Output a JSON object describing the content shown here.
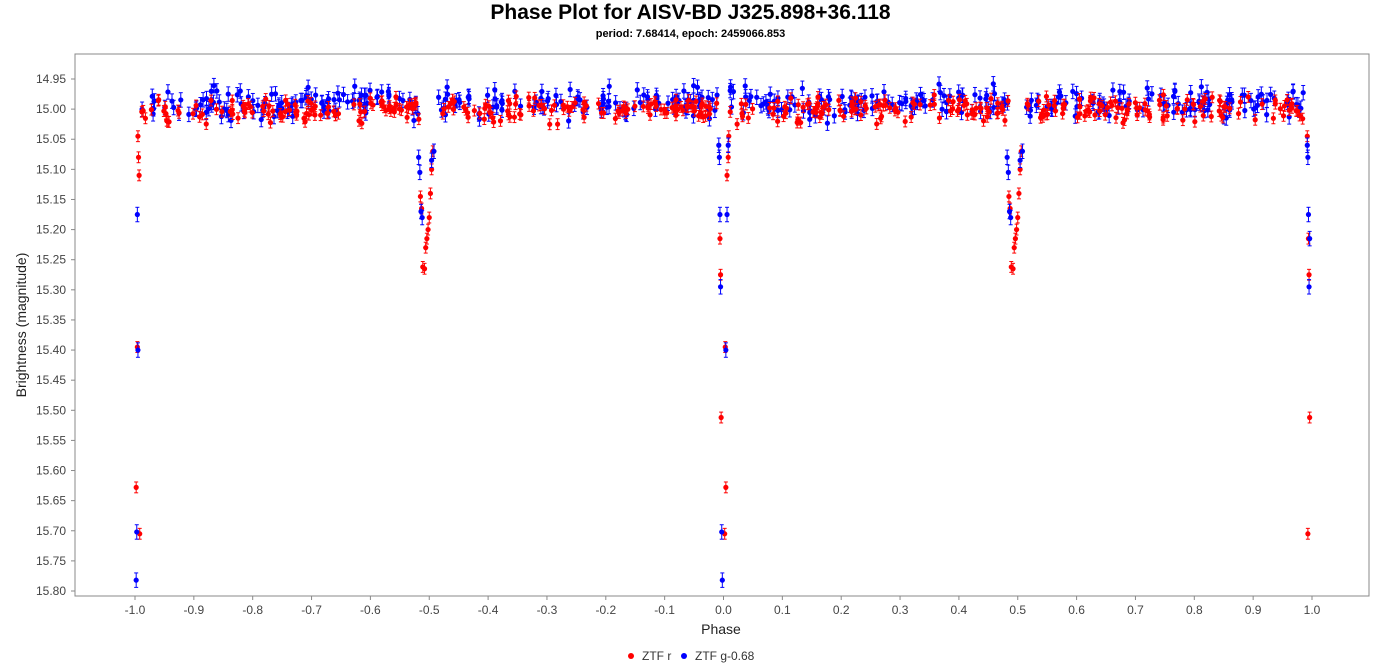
{
  "chart_data": {
    "type": "scatter",
    "title": "Phase Plot for AISV-BD J325.898+36.118",
    "subtitle": "period: 7.68414, epoch: 2459066.853",
    "xlabel": "Phase",
    "ylabel": "Brightness (magnitude)",
    "xlim": [
      -1.1,
      1.1
    ],
    "ylim": [
      15.8,
      14.92
    ],
    "y_inverted": true,
    "grid": false,
    "legend_position": "bottom-center",
    "x_ticks": [
      "-1.0",
      "-0.9",
      "-0.8",
      "-0.7",
      "-0.6",
      "-0.5",
      "-0.4",
      "-0.3",
      "-0.2",
      "-0.1",
      "0.0",
      "0.1",
      "0.2",
      "0.3",
      "0.4",
      "0.5",
      "0.6",
      "0.7",
      "0.8",
      "0.9",
      "1.0"
    ],
    "y_ticks": [
      "14.95",
      "15.00",
      "15.05",
      "15.10",
      "15.15",
      "15.20",
      "15.25",
      "15.30",
      "15.35",
      "15.40",
      "15.45",
      "15.50",
      "15.55",
      "15.60",
      "15.65",
      "15.70",
      "15.75",
      "15.80"
    ],
    "colors": {
      "ztf_r": "#ff0000",
      "ztf_g": "#0000ff"
    },
    "series": [
      {
        "name": "ZTF r",
        "color": "#ff0000",
        "error_bar": 0.009,
        "baseline_mag": 15.0,
        "baseline_scatter": 0.02,
        "baseline_phase_ranges": [
          [
            -0.99,
            -0.515
          ],
          [
            -0.485,
            -0.01
          ],
          [
            0.01,
            0.485
          ],
          [
            0.515,
            0.99
          ]
        ],
        "eclipse_points": [
          [
            -0.995,
            15.045
          ],
          [
            -0.994,
            15.08
          ],
          [
            -0.993,
            15.11
          ],
          [
            -0.996,
            15.395
          ],
          [
            -0.998,
            15.628
          ],
          [
            -0.992,
            15.705
          ],
          [
            -0.515,
            15.145
          ],
          [
            -0.513,
            15.165
          ],
          [
            -0.511,
            15.262
          ],
          [
            -0.508,
            15.265
          ],
          [
            -0.506,
            15.23
          ],
          [
            -0.504,
            15.215
          ],
          [
            -0.502,
            15.2
          ],
          [
            -0.5,
            15.18
          ],
          [
            -0.498,
            15.14
          ],
          [
            -0.496,
            15.1
          ],
          [
            -0.494,
            15.07
          ],
          [
            -0.006,
            15.215
          ],
          [
            -0.005,
            15.275
          ],
          [
            -0.004,
            15.512
          ],
          [
            0.004,
            15.628
          ],
          [
            0.003,
            15.395
          ],
          [
            0.002,
            15.705
          ],
          [
            0.006,
            15.11
          ],
          [
            0.008,
            15.08
          ],
          [
            0.009,
            15.045
          ],
          [
            0.485,
            15.145
          ],
          [
            0.487,
            15.165
          ],
          [
            0.489,
            15.262
          ],
          [
            0.492,
            15.265
          ],
          [
            0.494,
            15.23
          ],
          [
            0.496,
            15.215
          ],
          [
            0.498,
            15.2
          ],
          [
            0.5,
            15.18
          ],
          [
            0.502,
            15.14
          ],
          [
            0.504,
            15.1
          ],
          [
            0.506,
            15.07
          ],
          [
            0.994,
            15.215
          ],
          [
            0.995,
            15.275
          ],
          [
            0.996,
            15.512
          ],
          [
            0.993,
            15.705
          ],
          [
            0.992,
            15.045
          ]
        ]
      },
      {
        "name": "ZTF g-0.68",
        "color": "#0000ff",
        "error_bar": 0.012,
        "baseline_mag": 14.99,
        "baseline_scatter": 0.025,
        "baseline_phase_ranges": [
          [
            -0.99,
            -0.515
          ],
          [
            -0.485,
            -0.01
          ],
          [
            0.01,
            0.485
          ],
          [
            0.515,
            0.99
          ]
        ],
        "eclipse_points": [
          [
            -0.996,
            15.175
          ],
          [
            -0.995,
            15.4
          ],
          [
            -0.997,
            15.702
          ],
          [
            -0.998,
            15.782
          ],
          [
            -0.518,
            15.08
          ],
          [
            -0.516,
            15.105
          ],
          [
            -0.514,
            15.17
          ],
          [
            -0.512,
            15.18
          ],
          [
            -0.496,
            15.085
          ],
          [
            -0.492,
            15.07
          ],
          [
            -0.008,
            15.06
          ],
          [
            -0.007,
            15.08
          ],
          [
            -0.006,
            15.175
          ],
          [
            -0.005,
            15.295
          ],
          [
            -0.003,
            15.702
          ],
          [
            -0.002,
            15.782
          ],
          [
            0.004,
            15.4
          ],
          [
            0.006,
            15.175
          ],
          [
            0.008,
            15.06
          ],
          [
            0.482,
            15.08
          ],
          [
            0.484,
            15.105
          ],
          [
            0.486,
            15.17
          ],
          [
            0.488,
            15.18
          ],
          [
            0.504,
            15.085
          ],
          [
            0.508,
            15.07
          ],
          [
            0.992,
            15.06
          ],
          [
            0.993,
            15.08
          ],
          [
            0.994,
            15.175
          ],
          [
            0.995,
            15.295
          ],
          [
            0.996,
            15.215
          ]
        ]
      }
    ],
    "legend": [
      {
        "label": "ZTF r",
        "color": "#ff0000"
      },
      {
        "label": "ZTF g-0.68",
        "color": "#0000ff"
      }
    ]
  }
}
